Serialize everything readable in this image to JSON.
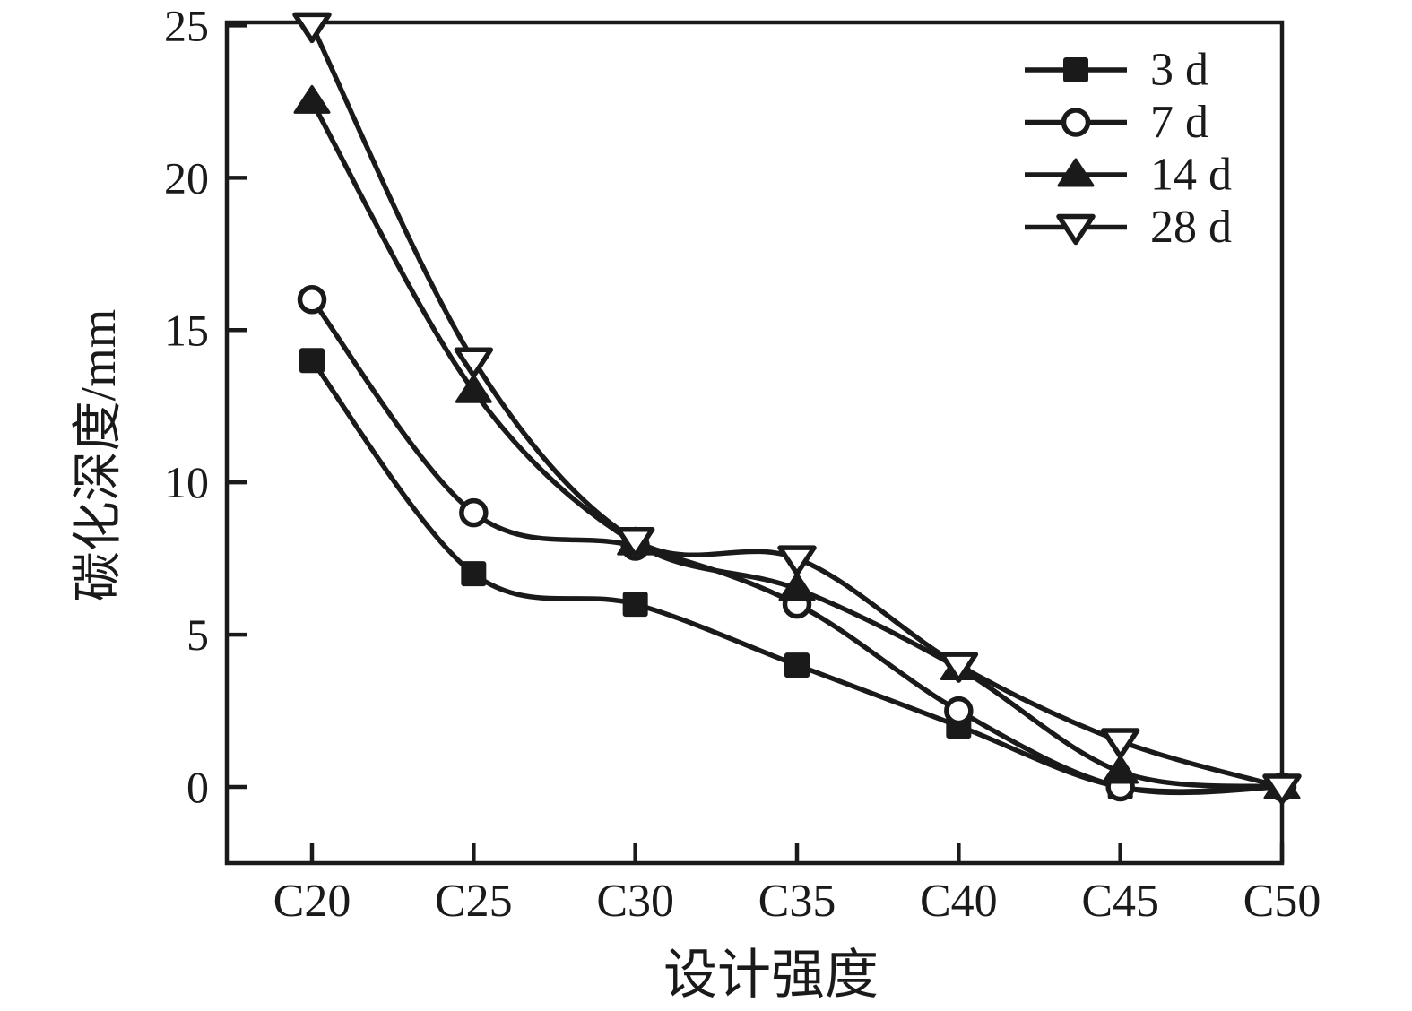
{
  "chart_data": {
    "type": "line",
    "title": "",
    "xlabel": "设计强度",
    "ylabel": "碳化深度/mm",
    "categories": [
      "C20",
      "C25",
      "C30",
      "C35",
      "C40",
      "C45",
      "C50"
    ],
    "series": [
      {
        "name": "3 d",
        "marker": "square-filled",
        "values": [
          14,
          7,
          6,
          4,
          2,
          0,
          0
        ]
      },
      {
        "name": "7 d",
        "marker": "circle-open",
        "values": [
          16,
          9,
          7.9,
          6,
          2.5,
          0,
          0
        ]
      },
      {
        "name": "14 d",
        "marker": "triangle-up-filled",
        "values": [
          22.5,
          13,
          8,
          6.5,
          3.9,
          0.5,
          0
        ]
      },
      {
        "name": "28 d",
        "marker": "triangle-down-open",
        "values": [
          25,
          14,
          8.1,
          7.5,
          4,
          1.5,
          0
        ]
      }
    ],
    "yticks": [
      0,
      5,
      10,
      15,
      20,
      25
    ],
    "ylim": [
      -2.5,
      25.1
    ],
    "grid": false,
    "legend_position": "top-right",
    "line_color": "#1a1a1a",
    "background_color": "#ffffff"
  }
}
